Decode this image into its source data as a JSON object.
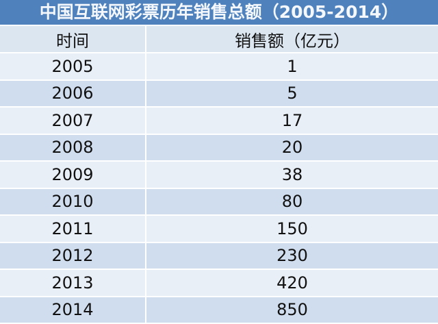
{
  "title": "中国互联网彩票历年销售总额（2005-2014）",
  "headers": {
    "year": "时间",
    "sales": "销售额（亿元）"
  },
  "rows": [
    {
      "year": "2005",
      "sales": "1"
    },
    {
      "year": "2006",
      "sales": "5"
    },
    {
      "year": "2007",
      "sales": "17"
    },
    {
      "year": "2008",
      "sales": "20"
    },
    {
      "year": "2009",
      "sales": "38"
    },
    {
      "year": "2010",
      "sales": "80"
    },
    {
      "year": "2011",
      "sales": "150"
    },
    {
      "year": "2012",
      "sales": "230"
    },
    {
      "year": "2013",
      "sales": "420"
    },
    {
      "year": "2014",
      "sales": "850"
    }
  ],
  "colors": {
    "title_bg": "#4f81bd",
    "row_light": "#e9eff7",
    "row_dark": "#d0ddee"
  }
}
